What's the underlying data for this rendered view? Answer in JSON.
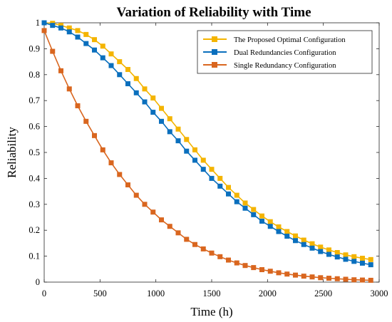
{
  "chart_data": {
    "type": "line",
    "title": "Variation of Reliability with Time",
    "xlabel": "Time (h)",
    "ylabel": "Reliability",
    "xlim": [
      0,
      3000
    ],
    "ylim": [
      0,
      1
    ],
    "xticks": [
      "0",
      "500",
      "1000",
      "1500",
      "2000",
      "2500",
      "3000"
    ],
    "yticks": [
      "0",
      "0.1",
      "0.2",
      "0.3",
      "0.4",
      "0.5",
      "0.6",
      "0.7",
      "0.8",
      "0.9",
      "1"
    ],
    "grid": false,
    "legend_position": "top-right",
    "x": [
      0,
      75,
      150,
      225,
      300,
      375,
      450,
      525,
      600,
      675,
      750,
      825,
      900,
      975,
      1050,
      1125,
      1200,
      1275,
      1350,
      1425,
      1500,
      1575,
      1650,
      1725,
      1800,
      1875,
      1950,
      2025,
      2100,
      2175,
      2250,
      2325,
      2400,
      2475,
      2550,
      2625,
      2700,
      2775,
      2850,
      2925
    ],
    "series": [
      {
        "name": "The Proposed Optimal Configuration",
        "color": "#f4b400",
        "values": [
          1.0,
          0.998,
          0.99,
          0.98,
          0.97,
          0.955,
          0.935,
          0.91,
          0.88,
          0.85,
          0.82,
          0.785,
          0.745,
          0.71,
          0.67,
          0.63,
          0.59,
          0.55,
          0.51,
          0.47,
          0.435,
          0.4,
          0.365,
          0.335,
          0.305,
          0.28,
          0.255,
          0.233,
          0.213,
          0.195,
          0.178,
          0.162,
          0.148,
          0.135,
          0.124,
          0.114,
          0.105,
          0.098,
          0.092,
          0.087
        ]
      },
      {
        "name": "Dual Redundancies Configuration",
        "color": "#0a6fbd",
        "values": [
          1.0,
          0.99,
          0.98,
          0.965,
          0.945,
          0.92,
          0.895,
          0.865,
          0.835,
          0.8,
          0.765,
          0.73,
          0.695,
          0.655,
          0.62,
          0.58,
          0.545,
          0.505,
          0.47,
          0.435,
          0.4,
          0.37,
          0.34,
          0.31,
          0.285,
          0.26,
          0.235,
          0.215,
          0.195,
          0.177,
          0.16,
          0.145,
          0.131,
          0.118,
          0.107,
          0.097,
          0.088,
          0.08,
          0.073,
          0.067
        ]
      },
      {
        "name": "Single Redundancy Configuration",
        "color": "#d9661f",
        "values": [
          0.97,
          0.89,
          0.815,
          0.745,
          0.68,
          0.62,
          0.565,
          0.51,
          0.46,
          0.415,
          0.375,
          0.335,
          0.3,
          0.27,
          0.24,
          0.215,
          0.19,
          0.165,
          0.145,
          0.128,
          0.112,
          0.098,
          0.085,
          0.074,
          0.064,
          0.056,
          0.048,
          0.042,
          0.036,
          0.031,
          0.027,
          0.023,
          0.02,
          0.017,
          0.015,
          0.013,
          0.011,
          0.009,
          0.008,
          0.007
        ]
      }
    ]
  }
}
